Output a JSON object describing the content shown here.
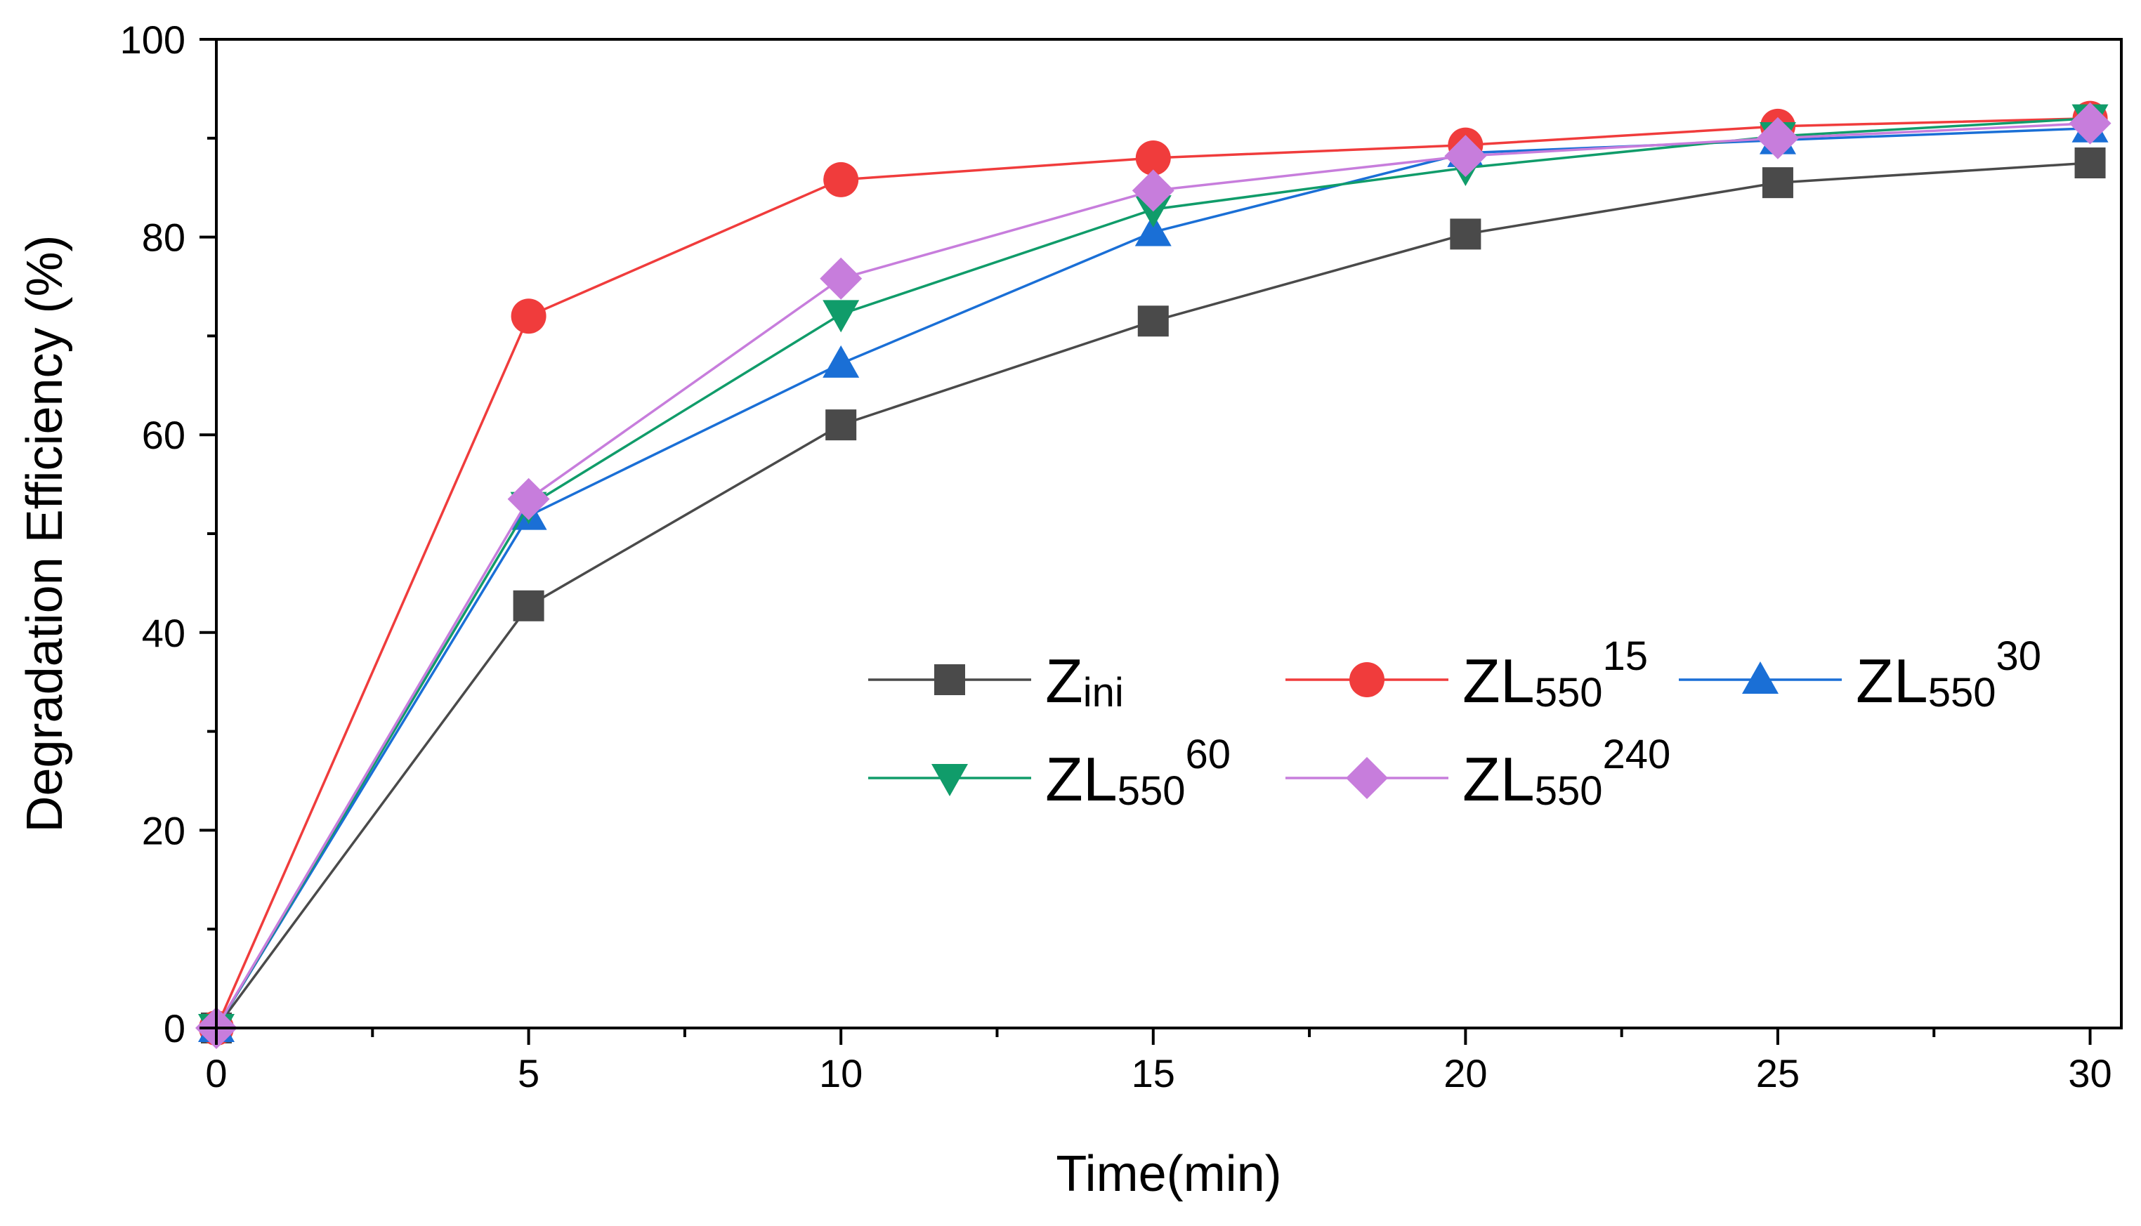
{
  "chart_data": {
    "type": "line",
    "title": "",
    "xlabel": "Time(min)",
    "ylabel": "Degradation Efficiency (%)",
    "xlim": [
      0,
      30.5
    ],
    "ylim": [
      0,
      100
    ],
    "xticks": [
      0,
      5,
      10,
      15,
      20,
      25,
      30
    ],
    "yticks": [
      0,
      20,
      40,
      60,
      80,
      100
    ],
    "xtick_labels": [
      "0",
      "5",
      "10",
      "15",
      "20",
      "25",
      "30"
    ],
    "ytick_labels": [
      "0",
      "20",
      "40",
      "60",
      "80",
      "100"
    ],
    "grid": false,
    "legend_position": "center-right",
    "x": [
      0,
      5,
      10,
      15,
      20,
      25,
      30
    ],
    "series": [
      {
        "name": "Zini",
        "label_main": "Z",
        "label_sub": "ini",
        "label_sup": "",
        "color": "#4a4a4a",
        "marker": "square",
        "values": [
          0,
          42.7,
          61.0,
          71.5,
          80.3,
          85.5,
          87.5
        ]
      },
      {
        "name": "ZL550 15",
        "label_main": "ZL",
        "label_sub": "550",
        "label_sup": "15",
        "color": "#f03c3c",
        "marker": "circle",
        "values": [
          0,
          72.0,
          85.8,
          88.0,
          89.3,
          91.2,
          92.0
        ]
      },
      {
        "name": "ZL550 30",
        "label_main": "ZL",
        "label_sub": "550",
        "label_sup": "30",
        "color": "#1a6fd6",
        "marker": "triangle-up",
        "values": [
          0,
          51.8,
          67.2,
          80.5,
          88.5,
          89.8,
          91.0
        ]
      },
      {
        "name": "ZL550 60",
        "label_main": "ZL",
        "label_sub": "550",
        "label_sup": "60",
        "color": "#109c6a",
        "marker": "triangle-down",
        "values": [
          0,
          52.8,
          72.2,
          82.8,
          87.0,
          90.2,
          92.0
        ]
      },
      {
        "name": "ZL550 240",
        "label_main": "ZL",
        "label_sub": "550",
        "label_sup": "240",
        "color": "#c77ddc",
        "marker": "diamond",
        "values": [
          0,
          53.5,
          75.8,
          84.7,
          88.2,
          90.0,
          91.5
        ]
      }
    ]
  }
}
